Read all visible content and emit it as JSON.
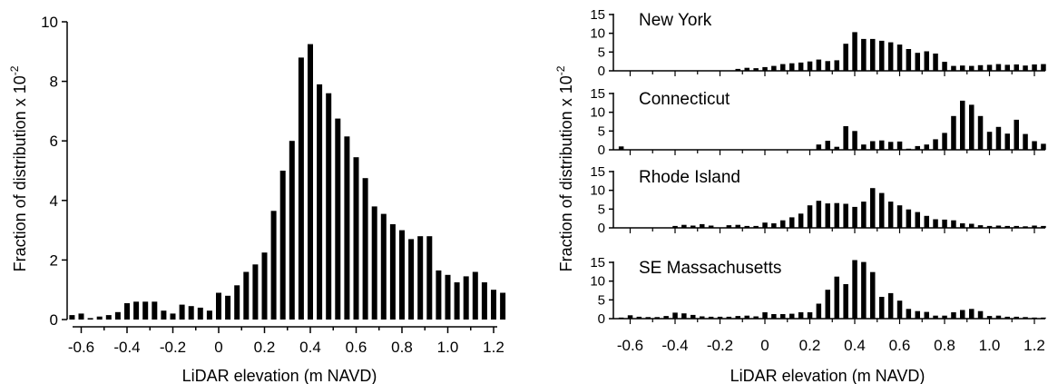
{
  "chart_data": [
    {
      "type": "bar",
      "panel": "combined",
      "xlabel": "LiDAR elevation (m NAVD)",
      "ylabel_main": "Fraction of distribution x 10",
      "ylabel_exp": "-2",
      "ylim": [
        0,
        10
      ],
      "xlim": [
        -0.65,
        1.25
      ],
      "yticks": [
        0,
        2,
        4,
        6,
        8,
        10
      ],
      "xticks": [
        "-0.6",
        "-0.4",
        "-0.2",
        "0",
        "0.2",
        "0.4",
        "0.6",
        "0.8",
        "1.0",
        "1.2"
      ],
      "x": [
        -0.64,
        -0.6,
        -0.56,
        -0.52,
        -0.48,
        -0.44,
        -0.4,
        -0.36,
        -0.32,
        -0.28,
        -0.24,
        -0.2,
        -0.16,
        -0.12,
        -0.08,
        -0.04,
        0,
        0.04,
        0.08,
        0.12,
        0.16,
        0.2,
        0.24,
        0.28,
        0.32,
        0.36,
        0.4,
        0.44,
        0.48,
        0.52,
        0.56,
        0.6,
        0.64,
        0.68,
        0.72,
        0.76,
        0.8,
        0.84,
        0.88,
        0.92,
        0.96,
        1.0,
        1.04,
        1.08,
        1.12,
        1.16,
        1.2,
        1.24
      ],
      "values": [
        0.15,
        0.2,
        0.05,
        0.1,
        0.15,
        0.25,
        0.55,
        0.6,
        0.6,
        0.6,
        0.3,
        0.2,
        0.5,
        0.45,
        0.4,
        0.3,
        0.9,
        0.8,
        1.15,
        1.6,
        1.85,
        2.25,
        3.65,
        5.0,
        6.0,
        8.8,
        9.25,
        7.9,
        7.6,
        6.75,
        6.15,
        5.45,
        4.75,
        3.8,
        3.55,
        3.2,
        3.0,
        2.7,
        2.8,
        2.8,
        1.65,
        1.5,
        1.25,
        1.45,
        1.6,
        1.25,
        1.0,
        0.9
      ]
    },
    {
      "type": "bar",
      "panel": "New York",
      "title": "New York",
      "ylim": [
        0,
        15
      ],
      "yticks": [
        0,
        5,
        10,
        15
      ],
      "x": [
        -0.64,
        -0.6,
        -0.56,
        -0.52,
        -0.48,
        -0.44,
        -0.4,
        -0.36,
        -0.32,
        -0.28,
        -0.24,
        -0.2,
        -0.16,
        -0.12,
        -0.08,
        -0.04,
        0,
        0.04,
        0.08,
        0.12,
        0.16,
        0.2,
        0.24,
        0.28,
        0.32,
        0.36,
        0.4,
        0.44,
        0.48,
        0.52,
        0.56,
        0.6,
        0.64,
        0.68,
        0.72,
        0.76,
        0.8,
        0.84,
        0.88,
        0.92,
        0.96,
        1.0,
        1.04,
        1.08,
        1.12,
        1.16,
        1.2,
        1.24
      ],
      "values": [
        0,
        0,
        0,
        0,
        0,
        0,
        0,
        0,
        0,
        0,
        0,
        0,
        0,
        0.5,
        0.8,
        0.7,
        1.0,
        1.3,
        1.8,
        2.0,
        2.2,
        2.5,
        3.0,
        2.6,
        2.8,
        7.2,
        10.3,
        8.5,
        8.5,
        8.0,
        7.6,
        7.0,
        5.8,
        4.8,
        5.2,
        4.6,
        2.4,
        1.3,
        1.4,
        1.3,
        1.5,
        1.6,
        1.8,
        1.6,
        1.7,
        1.4,
        1.7,
        1.8
      ]
    },
    {
      "type": "bar",
      "panel": "Connecticut",
      "title": "Connecticut",
      "ylim": [
        0,
        15
      ],
      "yticks": [
        0,
        5,
        10,
        15
      ],
      "x": [
        -0.64,
        -0.6,
        -0.56,
        -0.52,
        -0.48,
        -0.44,
        -0.4,
        -0.36,
        -0.32,
        -0.28,
        -0.24,
        -0.2,
        -0.16,
        -0.12,
        -0.08,
        -0.04,
        0,
        0.04,
        0.08,
        0.12,
        0.16,
        0.2,
        0.24,
        0.28,
        0.32,
        0.36,
        0.4,
        0.44,
        0.48,
        0.52,
        0.56,
        0.6,
        0.64,
        0.68,
        0.72,
        0.76,
        0.8,
        0.84,
        0.88,
        0.92,
        0.96,
        1.0,
        1.04,
        1.08,
        1.12,
        1.16,
        1.2,
        1.24
      ],
      "values": [
        0.9,
        0,
        0,
        0,
        0,
        0,
        0,
        0,
        0,
        0,
        0,
        0,
        0,
        0,
        0,
        0,
        0,
        0,
        0,
        0,
        0,
        0,
        1.4,
        2.4,
        0.8,
        6.3,
        5.0,
        1.4,
        2.3,
        2.5,
        2.1,
        2.2,
        0.3,
        1.0,
        1.4,
        2.8,
        4.5,
        9.0,
        13.1,
        12.0,
        9.0,
        4.8,
        6.1,
        4.3,
        8.0,
        4.2,
        2.3,
        1.6
      ]
    },
    {
      "type": "bar",
      "panel": "Rhode Island",
      "title": "Rhode Island",
      "ylim": [
        0,
        15
      ],
      "yticks": [
        0,
        5,
        10,
        15
      ],
      "x": [
        -0.64,
        -0.6,
        -0.56,
        -0.52,
        -0.48,
        -0.44,
        -0.4,
        -0.36,
        -0.32,
        -0.28,
        -0.24,
        -0.2,
        -0.16,
        -0.12,
        -0.08,
        -0.04,
        0,
        0.04,
        0.08,
        0.12,
        0.16,
        0.2,
        0.24,
        0.28,
        0.32,
        0.36,
        0.4,
        0.44,
        0.48,
        0.52,
        0.56,
        0.6,
        0.64,
        0.68,
        0.72,
        0.76,
        0.8,
        0.84,
        0.88,
        0.92,
        0.96,
        1.0,
        1.04,
        1.08,
        1.12,
        1.16,
        1.2,
        1.24
      ],
      "values": [
        0,
        0,
        0,
        0,
        0,
        0,
        0.5,
        0.8,
        0.6,
        1.0,
        0.6,
        0,
        0.7,
        0.8,
        0.5,
        0.5,
        1.4,
        1.2,
        2.0,
        2.8,
        3.8,
        6.0,
        7.2,
        6.5,
        6.6,
        6.4,
        5.6,
        7.0,
        10.6,
        9.3,
        7.0,
        6.0,
        4.9,
        4.2,
        3.2,
        2.3,
        2.2,
        2.0,
        1.2,
        1.1,
        0.7,
        0.5,
        0.6,
        0.5,
        0.5,
        0.4,
        0.6,
        0.5
      ]
    },
    {
      "type": "bar",
      "panel": "SE Massachusetts",
      "title": "SE Massachusetts",
      "ylim": [
        0,
        15
      ],
      "yticks": [
        0,
        5,
        10,
        15
      ],
      "xticks": [
        "-0.6",
        "-0.4",
        "-0.2",
        "0",
        "0.2",
        "0.4",
        "0.6",
        "0.8",
        "1.0",
        "1.2"
      ],
      "xlabel": "LiDAR elevation (m NAVD)",
      "x": [
        -0.64,
        -0.6,
        -0.56,
        -0.52,
        -0.48,
        -0.44,
        -0.4,
        -0.36,
        -0.32,
        -0.28,
        -0.24,
        -0.2,
        -0.16,
        -0.12,
        -0.08,
        -0.04,
        0,
        0.04,
        0.08,
        0.12,
        0.16,
        0.2,
        0.24,
        0.28,
        0.32,
        0.36,
        0.4,
        0.44,
        0.48,
        0.52,
        0.56,
        0.6,
        0.64,
        0.68,
        0.72,
        0.76,
        0.8,
        0.84,
        0.88,
        0.92,
        0.96,
        1.0,
        1.04,
        1.08,
        1.12,
        1.16,
        1.2,
        1.24
      ],
      "values": [
        0.3,
        0.9,
        0.5,
        0.4,
        0.4,
        0.7,
        1.6,
        1.4,
        1.0,
        0.6,
        0.5,
        0.5,
        0.5,
        0.7,
        0.8,
        0.6,
        1.7,
        1.2,
        1.2,
        1.3,
        1.7,
        1.7,
        4.0,
        7.7,
        11.2,
        9.2,
        15.6,
        15.1,
        12.4,
        5.8,
        6.8,
        4.8,
        2.6,
        2.0,
        1.8,
        0.8,
        0.8,
        1.7,
        2.3,
        2.6,
        2.0,
        0.7,
        0.8,
        0.5,
        0.5,
        0.4,
        0.3,
        0.3
      ]
    }
  ],
  "right_ylabel_main": "Fraction of distribution x 10",
  "right_ylabel_exp": "-2"
}
